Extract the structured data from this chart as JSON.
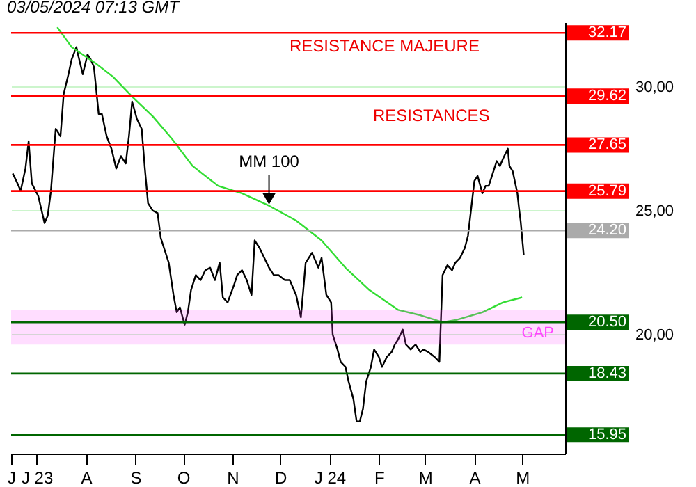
{
  "chart_data": {
    "type": "line",
    "title": "03/05/2024 07:13 GMT",
    "xlim": [
      "2023-06-15",
      "2024-05-28"
    ],
    "ylim": [
      15.2,
      32.6
    ],
    "xticks": [
      {
        "value": "2023-06-15",
        "label": "J"
      },
      {
        "value": "2023-07-01",
        "label": "J 23"
      },
      {
        "value": "2023-08-01",
        "label": "A"
      },
      {
        "value": "2023-09-01",
        "label": "S"
      },
      {
        "value": "2023-10-01",
        "label": "O"
      },
      {
        "value": "2023-11-01",
        "label": "N"
      },
      {
        "value": "2023-12-01",
        "label": "D"
      },
      {
        "value": "2024-01-01",
        "label": "J 24"
      },
      {
        "value": "2024-02-01",
        "label": "F"
      },
      {
        "value": "2024-03-01",
        "label": "M"
      },
      {
        "value": "2024-04-01",
        "label": "A"
      },
      {
        "value": "2024-05-01",
        "label": "M"
      }
    ],
    "yticks": [
      {
        "value": 20,
        "label": "20,00"
      },
      {
        "value": 25,
        "label": "25,00"
      },
      {
        "value": 30,
        "label": "30,00"
      }
    ],
    "grid": "y",
    "series": [
      {
        "color": "#000000",
        "x": [
          "2023-06-16",
          "2023-06-19",
          "2023-06-21",
          "2023-06-24",
          "2023-06-26",
          "2023-06-28",
          "2023-07-02",
          "2023-07-06",
          "2023-07-08",
          "2023-07-10",
          "2023-07-13",
          "2023-07-16",
          "2023-07-18",
          "2023-07-21",
          "2023-07-23",
          "2023-07-26",
          "2023-07-27",
          "2023-07-30",
          "2023-08-02",
          "2023-08-04",
          "2023-08-06",
          "2023-08-09",
          "2023-08-11",
          "2023-08-14",
          "2023-08-17",
          "2023-08-20",
          "2023-08-23",
          "2023-08-26",
          "2023-08-28",
          "2023-08-30",
          "2023-09-02",
          "2023-09-05",
          "2023-09-07",
          "2023-09-09",
          "2023-09-12",
          "2023-09-15",
          "2023-09-17",
          "2023-09-19",
          "2023-09-22",
          "2023-09-25",
          "2023-09-27",
          "2023-09-29",
          "2023-10-02",
          "2023-10-04",
          "2023-10-06",
          "2023-10-09",
          "2023-10-12",
          "2023-10-15",
          "2023-10-18",
          "2023-10-21",
          "2023-10-24",
          "2023-10-26",
          "2023-10-29",
          "2023-11-02",
          "2023-11-04",
          "2023-11-07",
          "2023-11-10",
          "2023-11-13",
          "2023-11-15",
          "2023-11-18",
          "2023-11-21",
          "2023-11-24",
          "2023-11-27",
          "2023-11-30",
          "2023-12-04",
          "2023-12-07",
          "2023-12-11",
          "2023-12-14",
          "2023-12-17",
          "2023-12-21",
          "2023-12-25",
          "2023-12-27",
          "2023-12-30",
          "2024-01-02",
          "2024-01-03",
          "2024-01-06",
          "2024-01-08",
          "2024-01-11",
          "2024-01-13",
          "2024-01-16",
          "2024-01-18",
          "2024-01-20",
          "2024-01-22",
          "2024-01-24",
          "2024-01-27",
          "2024-01-29",
          "2024-02-01",
          "2024-02-03",
          "2024-02-06",
          "2024-02-09",
          "2024-02-11",
          "2024-02-13",
          "2024-02-16",
          "2024-02-18",
          "2024-02-21",
          "2024-02-24",
          "2024-02-27",
          "2024-02-29",
          "2024-03-03",
          "2024-03-07",
          "2024-03-10",
          "2024-03-12",
          "2024-03-15",
          "2024-03-18",
          "2024-03-20",
          "2024-03-23",
          "2024-03-26",
          "2024-03-28",
          "2024-03-30",
          "2024-04-01",
          "2024-04-03",
          "2024-04-06",
          "2024-04-08",
          "2024-04-10",
          "2024-04-12",
          "2024-04-15",
          "2024-04-17",
          "2024-04-19",
          "2024-04-22",
          "2024-04-23",
          "2024-04-25",
          "2024-04-28",
          "2024-04-29",
          "2024-04-30",
          "2024-05-02"
        ],
        "values": [
          26.5,
          26.1,
          25.8,
          26.7,
          27.8,
          26.1,
          25.6,
          24.5,
          24.8,
          25.8,
          28.3,
          28.0,
          29.7,
          30.5,
          31.1,
          31.6,
          31.3,
          30.5,
          31.3,
          31.1,
          30.8,
          28.9,
          28.9,
          28.0,
          27.5,
          26.7,
          27.2,
          26.9,
          28.0,
          29.4,
          28.7,
          28.3,
          26.7,
          25.3,
          25.0,
          24.9,
          23.9,
          23.5,
          22.9,
          21.6,
          20.9,
          21.1,
          20.4,
          20.9,
          21.8,
          22.4,
          22.2,
          22.6,
          22.7,
          22.2,
          22.9,
          21.5,
          21.3,
          22.0,
          22.4,
          22.6,
          22.2,
          21.6,
          23.8,
          23.5,
          23.1,
          22.7,
          22.4,
          22.4,
          22.2,
          22.2,
          21.6,
          20.7,
          22.9,
          23.3,
          22.7,
          23.1,
          21.6,
          21.3,
          20.0,
          19.4,
          18.9,
          18.7,
          18.1,
          17.4,
          16.5,
          16.5,
          17.0,
          18.1,
          18.7,
          19.4,
          19.1,
          18.7,
          19.1,
          19.3,
          19.6,
          19.8,
          20.2,
          19.6,
          19.4,
          19.6,
          19.3,
          19.4,
          19.3,
          19.1,
          18.9,
          22.4,
          22.8,
          22.6,
          22.9,
          23.1,
          23.5,
          24.0,
          25.1,
          26.2,
          26.4,
          25.7,
          26.0,
          26.0,
          26.4,
          27.0,
          26.8,
          27.1,
          27.5,
          26.8,
          26.6,
          25.7,
          25.1,
          24.6,
          23.2
        ]
      },
      {
        "color": "#33dd33",
        "x": [
          "2023-07-14",
          "2023-07-23",
          "2023-08-08",
          "2023-08-18",
          "2023-08-30",
          "2023-09-12",
          "2023-09-24",
          "2023-10-07",
          "2023-10-23",
          "2023-11-07",
          "2023-11-24",
          "2023-12-11",
          "2023-12-27",
          "2024-01-11",
          "2024-01-26",
          "2024-02-13",
          "2024-02-26",
          "2024-03-12",
          "2024-03-21",
          "2024-04-06",
          "2024-04-19",
          "2024-05-01"
        ],
        "values": [
          32.4,
          31.6,
          30.9,
          30.4,
          29.6,
          28.8,
          27.9,
          26.8,
          26.0,
          25.7,
          25.2,
          24.6,
          23.8,
          22.7,
          21.8,
          21.0,
          20.8,
          20.5,
          20.6,
          20.9,
          21.3,
          21.5
        ]
      }
    ],
    "ref_lines": [
      {
        "axis": "y",
        "value": 32.17,
        "label": "32.17",
        "color": "#ff0000"
      },
      {
        "axis": "y",
        "value": 29.62,
        "label": "29.62",
        "color": "#ff0000"
      },
      {
        "axis": "y",
        "value": 27.65,
        "label": "27.65",
        "color": "#ff0000"
      },
      {
        "axis": "y",
        "value": 25.79,
        "label": "25.79",
        "color": "#ff0000"
      },
      {
        "axis": "y",
        "value": 24.2,
        "label": "24.20",
        "color": "#aaaaaa"
      },
      {
        "axis": "y",
        "value": 20.5,
        "label": "20.50",
        "color": "#006600"
      },
      {
        "axis": "y",
        "value": 18.43,
        "label": "18.43",
        "color": "#006600"
      },
      {
        "axis": "y",
        "value": 15.95,
        "label": "15.95",
        "color": "#006600"
      }
    ],
    "bands": [
      {
        "axis": "y",
        "from": 19.6,
        "to": 21.0,
        "label": "GAP",
        "color": "#ff44ff"
      }
    ],
    "annotations": [
      "RESISTANCE MAJEURE",
      "RESISTANCES",
      {
        "text": "MM 100",
        "x": "2023-11-24",
        "y": 25.2
      }
    ]
  }
}
